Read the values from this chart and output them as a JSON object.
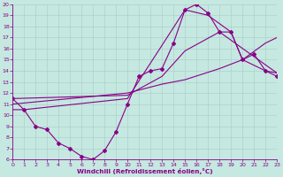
{
  "xlabel": "Windchill (Refroidissement éolien,°C)",
  "bg_color": "#c5e8e0",
  "grid_color": "#a8ccc8",
  "line_color": "#880088",
  "xlim": [
    0,
    23
  ],
  "ylim": [
    6,
    20
  ],
  "xticks": [
    0,
    1,
    2,
    3,
    4,
    5,
    6,
    7,
    8,
    9,
    10,
    11,
    12,
    13,
    14,
    15,
    16,
    17,
    18,
    19,
    20,
    21,
    22,
    23
  ],
  "yticks": [
    6,
    7,
    8,
    9,
    10,
    11,
    12,
    13,
    14,
    15,
    16,
    17,
    18,
    19,
    20
  ],
  "curve_x": [
    0,
    1,
    2,
    3,
    4,
    5,
    6,
    7,
    8,
    9,
    10,
    11,
    12,
    13,
    14,
    15,
    16,
    17,
    18,
    19,
    20,
    21,
    22,
    23
  ],
  "curve_y": [
    11.5,
    10.5,
    9.0,
    8.7,
    7.5,
    7.0,
    6.3,
    6.0,
    6.8,
    8.5,
    11.0,
    13.5,
    14.0,
    14.2,
    16.5,
    19.5,
    20.0,
    19.2,
    17.5,
    17.5,
    15.0,
    15.5,
    14.0,
    13.5
  ],
  "line2_x": [
    0,
    10,
    13,
    15,
    18,
    20,
    22,
    23
  ],
  "line2_y": [
    11.0,
    12.0,
    12.8,
    13.2,
    14.2,
    15.0,
    16.5,
    17.0
  ],
  "line3_x": [
    0,
    10,
    13,
    15,
    18,
    23
  ],
  "line3_y": [
    11.5,
    11.8,
    13.5,
    15.8,
    17.5,
    13.8
  ],
  "line4_x": [
    0,
    1,
    10,
    15,
    17,
    19,
    20,
    22,
    23
  ],
  "line4_y": [
    10.5,
    10.5,
    11.5,
    19.5,
    19.0,
    17.5,
    15.0,
    14.0,
    13.8
  ],
  "marker": "D",
  "markersize": 2,
  "linewidth": 0.8,
  "tick_fontsize": 4.5,
  "xlabel_fontsize": 5.2
}
